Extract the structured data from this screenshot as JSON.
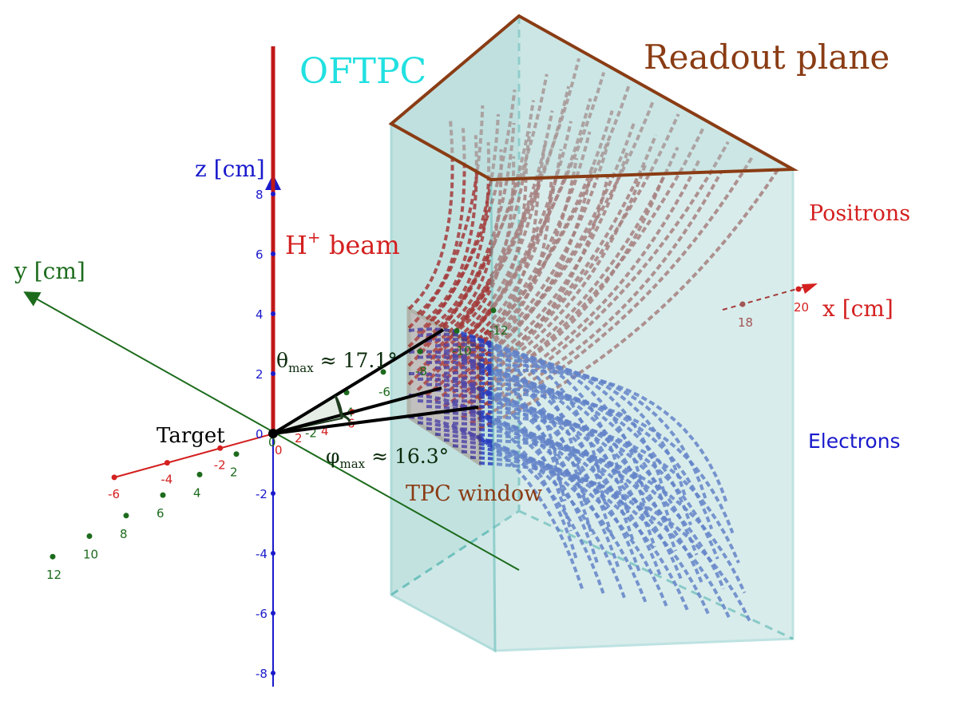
{
  "diagram": {
    "title": "OFTPC",
    "readout_label": "Readout plane",
    "positrons_label": "Positrons",
    "electrons_label": "Electrons",
    "beam_label_main": "H",
    "beam_label_sup": "+",
    "beam_label_tail": " beam",
    "target_label": "Target",
    "window_label": "TPC window",
    "theta_symbol": "θ",
    "theta_sub": "max",
    "theta_value": " ≈ 17.1°",
    "phi_symbol": "φ",
    "phi_sub": "max",
    "phi_value": " ≈ 16.3°",
    "z_axis_label": "z [cm]",
    "y_axis_label": "y [cm]",
    "x_axis_label": "x [cm]",
    "z_ticks": [
      "8",
      "6",
      "4",
      "2",
      "0",
      "-2",
      "-4",
      "-6",
      "-8"
    ],
    "y_ticks": [
      "12",
      "10",
      "8",
      "6",
      "4",
      "2",
      "0",
      "-2",
      "-4",
      "-6",
      "-8",
      "-10",
      "-12"
    ],
    "x_ticks_neg": [
      "-6",
      "-4",
      "-2"
    ],
    "x_ticks_pos": [
      "0",
      "2",
      "4",
      "6",
      "18",
      "20"
    ],
    "colors": {
      "chamber_fill": "#a9d6d4",
      "chamber_edge": "#6fc1bd",
      "readout_edge": "#8a3c14",
      "positron": "#a33a3a",
      "electron": "#2a3fbf",
      "x_axis": "#d42020",
      "y_axis": "#1c6b1c",
      "z_axis": "#1a1acc",
      "beam": "#c01818",
      "title": "#22e0e0"
    }
  }
}
